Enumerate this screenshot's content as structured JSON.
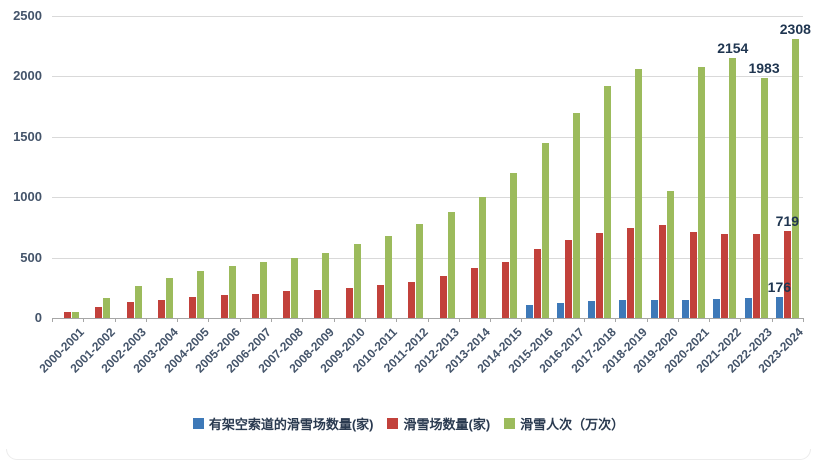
{
  "chart_data": {
    "type": "bar",
    "title": "",
    "xlabel": "",
    "ylabel": "",
    "ylim": [
      0,
      2500
    ],
    "yticks": [
      0,
      500,
      1000,
      1500,
      2000,
      2500
    ],
    "grid": true,
    "legend_position": "bottom",
    "categories": [
      "2000-2001",
      "2001-2002",
      "2002-2003",
      "2003-2004",
      "2004-2005",
      "2005-2006",
      "2006-2007",
      "2007-2008",
      "2008-2009",
      "2009-2010",
      "2010-2011",
      "2011-2012",
      "2012-2013",
      "2013-2014",
      "2014-2015",
      "2015-2016",
      "2016-2017",
      "2017-2018",
      "2018-2019",
      "2019-2020",
      "2020-2021",
      "2021-2022",
      "2022-2023",
      "2023-2024"
    ],
    "series": [
      {
        "name": "有架空索道的滑雪场数量(家)",
        "color": "#3E79B8",
        "values": [
          0,
          0,
          0,
          0,
          0,
          0,
          0,
          0,
          0,
          0,
          0,
          0,
          0,
          0,
          0,
          110,
          125,
          142,
          148,
          152,
          152,
          158,
          165,
          176
        ]
      },
      {
        "name": "滑雪场数量(家)",
        "color": "#C2413B",
        "values": [
          50,
          90,
          130,
          150,
          170,
          190,
          200,
          220,
          230,
          250,
          270,
          300,
          350,
          410,
          460,
          568,
          646,
          703,
          742,
          770,
          715,
          692,
          697,
          719
        ]
      },
      {
        "name": "滑雪人次（万次）",
        "color": "#9CBB5C",
        "values": [
          50,
          165,
          265,
          330,
          390,
          430,
          460,
          500,
          540,
          610,
          680,
          780,
          880,
          1000,
          1200,
          1450,
          1700,
          1920,
          2060,
          1050,
          2080,
          2154,
          1983,
          2308
        ]
      }
    ],
    "data_labels": [
      {
        "series": 2,
        "index": 21,
        "text": "2154"
      },
      {
        "series": 2,
        "index": 22,
        "text": "1983"
      },
      {
        "series": 2,
        "index": 23,
        "text": "2308"
      },
      {
        "series": 1,
        "index": 23,
        "text": "719"
      },
      {
        "series": 0,
        "index": 23,
        "text": "176"
      }
    ]
  }
}
